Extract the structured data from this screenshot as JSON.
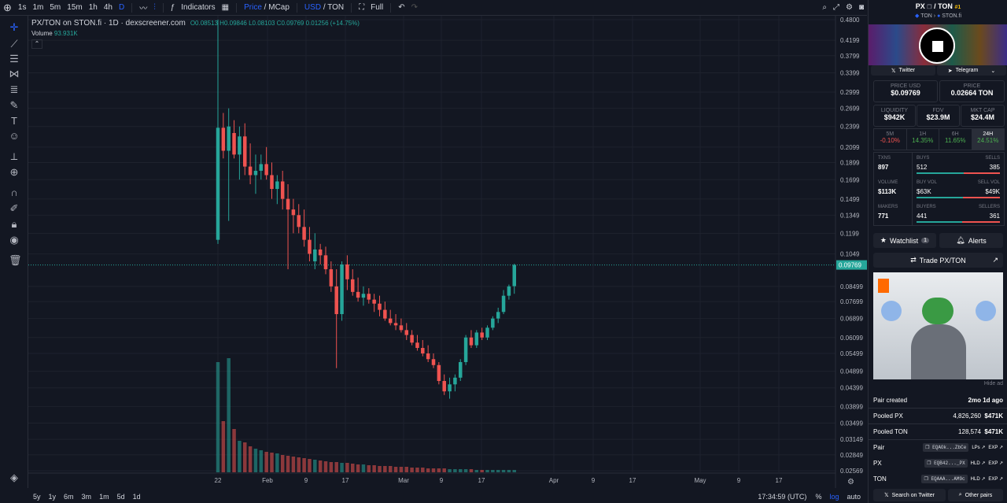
{
  "toolbar": {
    "intervals": [
      "1s",
      "1m",
      "5m",
      "15m",
      "1h",
      "4h",
      "D"
    ],
    "indicators_label": "Indicators",
    "price_label": "Price",
    "mcap_label": "MCap",
    "usd_label": "USD",
    "ton_label": "TON",
    "full_label": "Full"
  },
  "legend": {
    "title": "PX/TON on STON.fi · 1D · dexscreener.com",
    "ohlc": "O0.08513 H0.09846 L0.08103 C0.09769 0.01256 (+14.75%)",
    "volume_label": "Volume",
    "volume_value": "93.931K"
  },
  "price_axis": [
    "0.4800",
    "0.4199",
    "0.3799",
    "0.3399",
    "0.2999",
    "0.2699",
    "0.2399",
    "0.2099",
    "0.1899",
    "0.1699",
    "0.1499",
    "0.1349",
    "0.1199",
    "0.1049",
    "0.09769",
    "0.08499",
    "0.07699",
    "0.06899",
    "0.06099",
    "0.05499",
    "0.04899",
    "0.04399",
    "0.03899",
    "0.03499",
    "0.03149",
    "0.02849",
    "0.02569"
  ],
  "time_axis": [
    "22",
    "Feb",
    "9",
    "17",
    "Mar",
    "9",
    "17",
    "Apr",
    "9",
    "17",
    "May",
    "9",
    "17"
  ],
  "bottom": {
    "ranges": [
      "5y",
      "1y",
      "6m",
      "3m",
      "1m",
      "5d",
      "1d"
    ],
    "clock": "17:34:59 (UTC)",
    "percent": "%",
    "log": "log",
    "auto": "auto"
  },
  "colors": {
    "up": "#26a69a",
    "down": "#ef5350",
    "bg": "#131722",
    "accent": "#2962ff"
  },
  "chart_data": {
    "type": "candlestick",
    "pair": "PX/TON",
    "candles": [
      {
        "o": 0.115,
        "h": 0.48,
        "l": 0.112,
        "c": 0.238
      },
      {
        "o": 0.238,
        "h": 0.262,
        "l": 0.195,
        "c": 0.205
      },
      {
        "o": 0.205,
        "h": 0.27,
        "l": 0.13,
        "c": 0.24
      },
      {
        "o": 0.23,
        "h": 0.25,
        "l": 0.195,
        "c": 0.2
      },
      {
        "o": 0.2,
        "h": 0.24,
        "l": 0.17,
        "c": 0.225
      },
      {
        "o": 0.225,
        "h": 0.245,
        "l": 0.175,
        "c": 0.185
      },
      {
        "o": 0.185,
        "h": 0.215,
        "l": 0.165,
        "c": 0.175
      },
      {
        "o": 0.175,
        "h": 0.2,
        "l": 0.155,
        "c": 0.18
      },
      {
        "o": 0.18,
        "h": 0.2,
        "l": 0.17,
        "c": 0.188
      },
      {
        "o": 0.188,
        "h": 0.21,
        "l": 0.17,
        "c": 0.175
      },
      {
        "o": 0.175,
        "h": 0.19,
        "l": 0.15,
        "c": 0.16
      },
      {
        "o": 0.16,
        "h": 0.175,
        "l": 0.145,
        "c": 0.168
      },
      {
        "o": 0.168,
        "h": 0.18,
        "l": 0.14,
        "c": 0.15
      },
      {
        "o": 0.15,
        "h": 0.165,
        "l": 0.095,
        "c": 0.14
      },
      {
        "o": 0.14,
        "h": 0.15,
        "l": 0.12,
        "c": 0.135
      },
      {
        "o": 0.135,
        "h": 0.145,
        "l": 0.12,
        "c": 0.125
      },
      {
        "o": 0.125,
        "h": 0.14,
        "l": 0.11,
        "c": 0.115
      },
      {
        "o": 0.115,
        "h": 0.125,
        "l": 0.1,
        "c": 0.105
      },
      {
        "o": 0.1,
        "h": 0.12,
        "l": 0.095,
        "c": 0.108
      },
      {
        "o": 0.108,
        "h": 0.112,
        "l": 0.098,
        "c": 0.104
      },
      {
        "o": 0.104,
        "h": 0.11,
        "l": 0.092,
        "c": 0.095
      },
      {
        "o": 0.095,
        "h": 0.1,
        "l": 0.082,
        "c": 0.085
      },
      {
        "o": 0.085,
        "h": 0.095,
        "l": 0.05,
        "c": 0.071
      },
      {
        "o": 0.071,
        "h": 0.1,
        "l": 0.068,
        "c": 0.098
      },
      {
        "o": 0.098,
        "h": 0.104,
        "l": 0.083,
        "c": 0.089
      },
      {
        "o": 0.089,
        "h": 0.095,
        "l": 0.08,
        "c": 0.082
      },
      {
        "o": 0.082,
        "h": 0.09,
        "l": 0.077,
        "c": 0.079
      },
      {
        "o": 0.079,
        "h": 0.085,
        "l": 0.075,
        "c": 0.081
      },
      {
        "o": 0.081,
        "h": 0.084,
        "l": 0.076,
        "c": 0.078
      },
      {
        "o": 0.078,
        "h": 0.081,
        "l": 0.072,
        "c": 0.076
      },
      {
        "o": 0.076,
        "h": 0.08,
        "l": 0.07,
        "c": 0.073
      },
      {
        "o": 0.073,
        "h": 0.077,
        "l": 0.068,
        "c": 0.069
      },
      {
        "o": 0.069,
        "h": 0.073,
        "l": 0.066,
        "c": 0.067
      },
      {
        "o": 0.067,
        "h": 0.071,
        "l": 0.064,
        "c": 0.066
      },
      {
        "o": 0.066,
        "h": 0.069,
        "l": 0.063,
        "c": 0.064
      },
      {
        "o": 0.064,
        "h": 0.067,
        "l": 0.06,
        "c": 0.062
      },
      {
        "o": 0.062,
        "h": 0.064,
        "l": 0.058,
        "c": 0.059
      },
      {
        "o": 0.059,
        "h": 0.062,
        "l": 0.056,
        "c": 0.057
      },
      {
        "o": 0.057,
        "h": 0.06,
        "l": 0.054,
        "c": 0.055
      },
      {
        "o": 0.055,
        "h": 0.058,
        "l": 0.052,
        "c": 0.053
      },
      {
        "o": 0.053,
        "h": 0.055,
        "l": 0.05,
        "c": 0.051
      },
      {
        "o": 0.051,
        "h": 0.052,
        "l": 0.045,
        "c": 0.046
      },
      {
        "o": 0.046,
        "h": 0.048,
        "l": 0.042,
        "c": 0.043
      },
      {
        "o": 0.043,
        "h": 0.047,
        "l": 0.041,
        "c": 0.045
      },
      {
        "o": 0.045,
        "h": 0.048,
        "l": 0.043,
        "c": 0.047
      },
      {
        "o": 0.047,
        "h": 0.053,
        "l": 0.046,
        "c": 0.052
      },
      {
        "o": 0.052,
        "h": 0.062,
        "l": 0.051,
        "c": 0.061
      },
      {
        "o": 0.061,
        "h": 0.064,
        "l": 0.057,
        "c": 0.058
      },
      {
        "o": 0.058,
        "h": 0.064,
        "l": 0.057,
        "c": 0.063
      },
      {
        "o": 0.063,
        "h": 0.065,
        "l": 0.06,
        "c": 0.061
      },
      {
        "o": 0.061,
        "h": 0.066,
        "l": 0.06,
        "c": 0.065
      },
      {
        "o": 0.065,
        "h": 0.07,
        "l": 0.064,
        "c": 0.069
      },
      {
        "o": 0.069,
        "h": 0.074,
        "l": 0.067,
        "c": 0.072
      },
      {
        "o": 0.072,
        "h": 0.083,
        "l": 0.071,
        "c": 0.08
      },
      {
        "o": 0.08,
        "h": 0.086,
        "l": 0.078,
        "c": 0.085
      },
      {
        "o": 0.08513,
        "h": 0.09846,
        "l": 0.08103,
        "c": 0.09769
      }
    ],
    "volumes": [
      140,
      65,
      145,
      55,
      40,
      38,
      33,
      30,
      28,
      26,
      25,
      24,
      22,
      21,
      20,
      19,
      18,
      17,
      16,
      15,
      14,
      13,
      13,
      12,
      12,
      11,
      10,
      10,
      9,
      9,
      8,
      8,
      8,
      7,
      7,
      7,
      6,
      6,
      6,
      5,
      5,
      5,
      5,
      4,
      4,
      4,
      4,
      4,
      3,
      3,
      3,
      3,
      3,
      3,
      3,
      3
    ],
    "last_price": "0.09769",
    "yscale": "log"
  },
  "sidebar": {
    "pair_base": "PX",
    "pair_quote": "TON",
    "rank": "#1",
    "chain": "TON",
    "dex": "STON.fi",
    "twitter": "Twitter",
    "telegram": "Telegram",
    "price_usd_label": "PRICE USD",
    "price_usd": "$0.09769",
    "price_label": "PRICE",
    "price_ton": "0.02664 TON",
    "liquidity_label": "LIQUIDITY",
    "liquidity": "$942K",
    "fdv_label": "FDV",
    "fdv": "$23.9M",
    "mktcap_label": "MKT CAP",
    "mktcap": "$24.4M",
    "changes": [
      {
        "label": "5M",
        "value": "-0.10%"
      },
      {
        "label": "1H",
        "value": "14.35%"
      },
      {
        "label": "6H",
        "value": "11.65%"
      },
      {
        "label": "24H",
        "value": "24.51%"
      }
    ],
    "txns_label": "TXNS",
    "txns": "897",
    "buys_label": "BUYS",
    "buys": "512",
    "sells_label": "SELLS",
    "sells": "385",
    "volume_label": "VOLUME",
    "volume": "$113K",
    "buyvol_label": "BUY VOL",
    "buyvol": "$63K",
    "sellvol_label": "SELL VOL",
    "sellvol": "$49K",
    "makers_label": "MAKERS",
    "makers": "771",
    "buyers_label": "BUYERS",
    "buyers": "441",
    "sellers_label": "SELLERS",
    "sellers": "361",
    "watchlist": "Watchlist",
    "watchlist_count": "1",
    "alerts": "Alerts",
    "trade": "Trade PX/TON",
    "hide_ad": "Hide ad",
    "pair_created_label": "Pair created",
    "pair_created": "2mo 1d ago",
    "pooled_px_label": "Pooled PX",
    "pooled_px": "4,826,260",
    "pooled_px_usd": "$471K",
    "pooled_ton_label": "Pooled TON",
    "pooled_ton": "128,574",
    "pooled_ton_usd": "$471K",
    "pair_label": "Pair",
    "pair_addr": "EQAOk...ZbCe",
    "lps": "LPs",
    "exp": "EXP",
    "px_label": "PX",
    "px_addr": "EQB42..._PX",
    "hld": "HLD",
    "ton_label": "TON",
    "ton_addr": "EQAAA...AM9c",
    "search_twitter": "Search on Twitter",
    "other_pairs": "Other pairs"
  }
}
